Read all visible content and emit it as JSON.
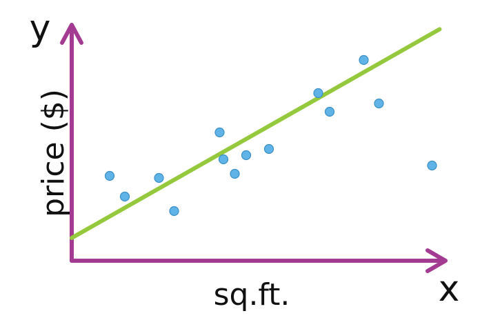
{
  "chart_data": {
    "type": "scatter",
    "title": "",
    "xlabel": "sq.ft.",
    "ylabel": "price ($)",
    "x_axis_letter": "x",
    "y_axis_letter": "y",
    "xlim": [
      0,
      100
    ],
    "ylim": [
      0,
      100
    ],
    "grid": false,
    "points": [
      {
        "x": 10,
        "y": 41
      },
      {
        "x": 14,
        "y": 31
      },
      {
        "x": 23,
        "y": 40
      },
      {
        "x": 27,
        "y": 24
      },
      {
        "x": 39,
        "y": 62
      },
      {
        "x": 40,
        "y": 49
      },
      {
        "x": 43,
        "y": 42
      },
      {
        "x": 46,
        "y": 51
      },
      {
        "x": 52,
        "y": 54
      },
      {
        "x": 65,
        "y": 81
      },
      {
        "x": 68,
        "y": 72
      },
      {
        "x": 77,
        "y": 97
      },
      {
        "x": 81,
        "y": 76
      },
      {
        "x": 95,
        "y": 46
      }
    ],
    "fit_line": {
      "intercept": 11,
      "slope": 1.04
    },
    "colors": {
      "axes": "#a23b91",
      "points": "#5fb3e6",
      "point_stroke": "#3a8fc8",
      "fit_line": "#95c93d"
    }
  }
}
